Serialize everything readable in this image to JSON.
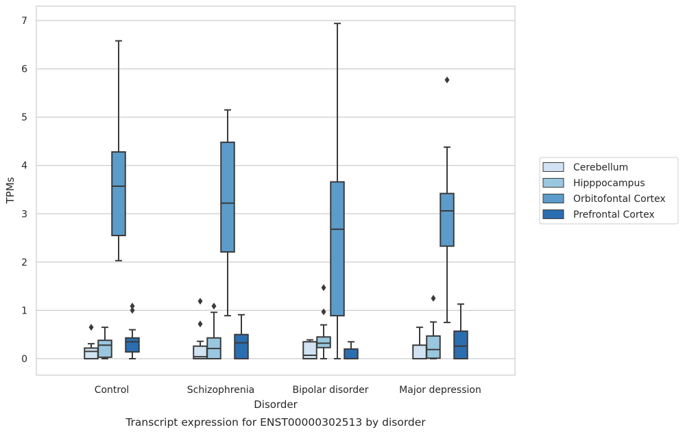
{
  "chart_data": {
    "type": "box",
    "title": "",
    "caption": "Transcript expression for ENST00000302513 by disorder",
    "xlabel": "Disorder",
    "ylabel": "TPMs",
    "ylim": [
      -0.33,
      7.3
    ],
    "yticks": [
      0,
      1,
      2,
      3,
      4,
      5,
      6,
      7
    ],
    "grid": "horizontal",
    "legend_position": "right",
    "categories": [
      "Control",
      "Schizophrenia",
      "Bipolar disorder",
      "Major depression"
    ],
    "series": [
      {
        "name": "Cerebellum",
        "color": "#d1e2f2",
        "boxes": [
          {
            "q1": 0.0,
            "median": 0.15,
            "q3": 0.22,
            "whisker_low": 0.0,
            "whisker_high": 0.31,
            "outliers": [
              0.65
            ]
          },
          {
            "q1": 0.0,
            "median": 0.04,
            "q3": 0.26,
            "whisker_low": 0.0,
            "whisker_high": 0.36,
            "outliers": [
              0.72,
              1.19
            ]
          },
          {
            "q1": 0.0,
            "median": 0.07,
            "q3": 0.35,
            "whisker_low": 0.0,
            "whisker_high": 0.39,
            "outliers": []
          },
          {
            "q1": 0.0,
            "median": 0.0,
            "q3": 0.28,
            "whisker_low": 0.0,
            "whisker_high": 0.65,
            "outliers": []
          }
        ]
      },
      {
        "name": "Hipppocampus",
        "color": "#9ac7e0",
        "boxes": [
          {
            "q1": 0.03,
            "median": 0.28,
            "q3": 0.38,
            "whisker_low": 0.0,
            "whisker_high": 0.65,
            "outliers": []
          },
          {
            "q1": 0.0,
            "median": 0.21,
            "q3": 0.43,
            "whisker_low": 0.0,
            "whisker_high": 0.96,
            "outliers": [
              1.09
            ]
          },
          {
            "q1": 0.23,
            "median": 0.32,
            "q3": 0.45,
            "whisker_low": 0.0,
            "whisker_high": 0.7,
            "outliers": [
              0.97,
              1.47
            ]
          },
          {
            "q1": 0.01,
            "median": 0.19,
            "q3": 0.47,
            "whisker_low": 0.0,
            "whisker_high": 0.76,
            "outliers": [
              1.25
            ]
          }
        ]
      },
      {
        "name": "Orbitofontal Cortex",
        "color": "#5b9cca",
        "boxes": [
          {
            "q1": 2.55,
            "median": 3.57,
            "q3": 4.28,
            "whisker_low": 2.03,
            "whisker_high": 6.58,
            "outliers": []
          },
          {
            "q1": 2.21,
            "median": 3.22,
            "q3": 4.48,
            "whisker_low": 0.89,
            "whisker_high": 5.15,
            "outliers": []
          },
          {
            "q1": 0.89,
            "median": 2.68,
            "q3": 3.66,
            "whisker_low": 0.0,
            "whisker_high": 6.94,
            "outliers": []
          },
          {
            "q1": 2.33,
            "median": 3.06,
            "q3": 3.42,
            "whisker_low": 0.75,
            "whisker_high": 4.38,
            "outliers": [
              5.77
            ]
          }
        ]
      },
      {
        "name": "Prefrontal Cortex",
        "color": "#2b6eb0",
        "boxes": [
          {
            "q1": 0.14,
            "median": 0.35,
            "q3": 0.43,
            "whisker_low": 0.0,
            "whisker_high": 0.6,
            "outliers": [
              1.0,
              1.09
            ]
          },
          {
            "q1": 0.0,
            "median": 0.33,
            "q3": 0.5,
            "whisker_low": 0.0,
            "whisker_high": 0.91,
            "outliers": []
          },
          {
            "q1": 0.0,
            "median": 0.0,
            "q3": 0.2,
            "whisker_low": 0.0,
            "whisker_high": 0.35,
            "outliers": []
          },
          {
            "q1": 0.0,
            "median": 0.26,
            "q3": 0.57,
            "whisker_low": 0.0,
            "whisker_high": 1.13,
            "outliers": []
          }
        ]
      }
    ]
  }
}
